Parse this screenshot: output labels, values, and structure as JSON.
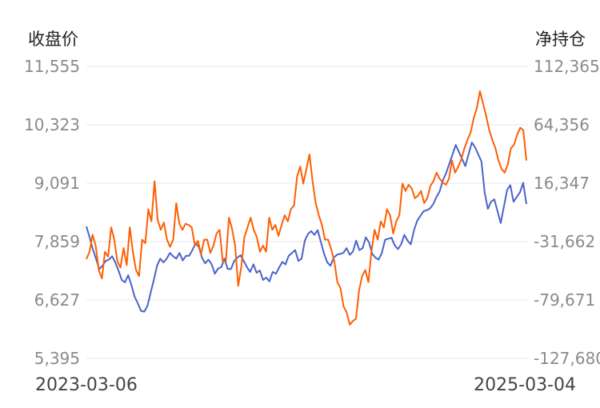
{
  "chart_data": {
    "type": "line",
    "left_axis_title": "收盘价",
    "right_axis_title": "净持仓",
    "x_start": "2023-03-06",
    "x_end": "2025-03-04",
    "left_ticks": [
      "11,555",
      "10,323",
      "9,091",
      "7,859",
      "6,627",
      "5,395"
    ],
    "right_ticks": [
      "112,365",
      "64,356",
      "16,347",
      "-31,662",
      "-79,671",
      "-127,680"
    ],
    "left_range": [
      5395,
      11555
    ],
    "right_range": [
      -127680,
      112365
    ],
    "grid": true,
    "series": [
      {
        "axis": "left",
        "color": "#4a63c8",
        "values": [
          8180,
          7950,
          7700,
          7500,
          7280,
          7350,
          7450,
          7480,
          7550,
          7420,
          7250,
          7050,
          7000,
          7150,
          6950,
          6700,
          6560,
          6400,
          6380,
          6500,
          6780,
          7050,
          7350,
          7500,
          7420,
          7500,
          7620,
          7550,
          7500,
          7620,
          7460,
          7560,
          7560,
          7680,
          7820,
          7750,
          7520,
          7400,
          7480,
          7380,
          7180,
          7290,
          7320,
          7500,
          7280,
          7280,
          7450,
          7520,
          7570,
          7450,
          7320,
          7220,
          7380,
          7200,
          7250,
          7050,
          7100,
          7020,
          7220,
          7180,
          7310,
          7430,
          7380,
          7560,
          7620,
          7680,
          7450,
          7500,
          7880,
          8020,
          8080,
          8000,
          8100,
          7850,
          7600,
          7420,
          7350,
          7520,
          7580,
          7600,
          7620,
          7720,
          7580,
          7650,
          7880,
          7680,
          7720,
          7950,
          7840,
          7600,
          7520,
          7480,
          7620,
          7900,
          7920,
          7940,
          7780,
          7700,
          7800,
          8000,
          7880,
          7800,
          8100,
          8300,
          8400,
          8500,
          8520,
          8560,
          8650,
          8800,
          8920,
          9150,
          9300,
          9500,
          9700,
          9900,
          9750,
          9600,
          9450,
          9700,
          9950,
          9850,
          9700,
          9550,
          8900,
          8550,
          8700,
          8750,
          8500,
          8250,
          8600,
          8950,
          9050,
          8700,
          8800,
          8900,
          9100,
          8650
        ]
      },
      {
        "axis": "right",
        "color": "#ff5e00",
        "values": [
          -46000,
          -40000,
          -26000,
          -35000,
          -55000,
          -62000,
          -40000,
          -44000,
          -20000,
          -30000,
          -48000,
          -53000,
          -37000,
          -51000,
          -20000,
          -40000,
          -55000,
          -60000,
          -30000,
          -33000,
          -5000,
          -15000,
          18000,
          -14000,
          -22000,
          -16000,
          -30000,
          -36000,
          -30000,
          0,
          -17000,
          -22000,
          -17000,
          -18000,
          -20000,
          -35000,
          -31000,
          -42000,
          -30000,
          -30000,
          -41000,
          -35000,
          -25000,
          -22000,
          -48000,
          -48000,
          -12000,
          -21000,
          -35000,
          -68000,
          -52000,
          -28000,
          -20000,
          -12000,
          -22000,
          -28000,
          -40000,
          -35000,
          -40000,
          -12000,
          -22000,
          -18000,
          -27000,
          -18000,
          -10000,
          -15000,
          -5000,
          -2000,
          22000,
          30000,
          16000,
          28000,
          40000,
          18000,
          0,
          -10000,
          -18000,
          -30000,
          -30000,
          -38000,
          -48000,
          -65000,
          -70000,
          -85000,
          -90000,
          -100000,
          -97000,
          -95000,
          -72000,
          -60000,
          -55000,
          -65000,
          -40000,
          -22000,
          -30000,
          -15000,
          -20000,
          -5000,
          -10000,
          -25000,
          -15000,
          -10000,
          16000,
          10000,
          15000,
          12000,
          4000,
          6000,
          10000,
          0,
          4000,
          14000,
          18000,
          25000,
          20000,
          17000,
          15000,
          20000,
          35000,
          25000,
          30000,
          36000,
          45000,
          52000,
          58000,
          70000,
          78000,
          92000,
          82000,
          72000,
          60000,
          52000,
          45000,
          35000,
          28000,
          25000,
          32000,
          45000,
          48000,
          56000,
          62000,
          60000,
          35000
        ]
      }
    ]
  }
}
